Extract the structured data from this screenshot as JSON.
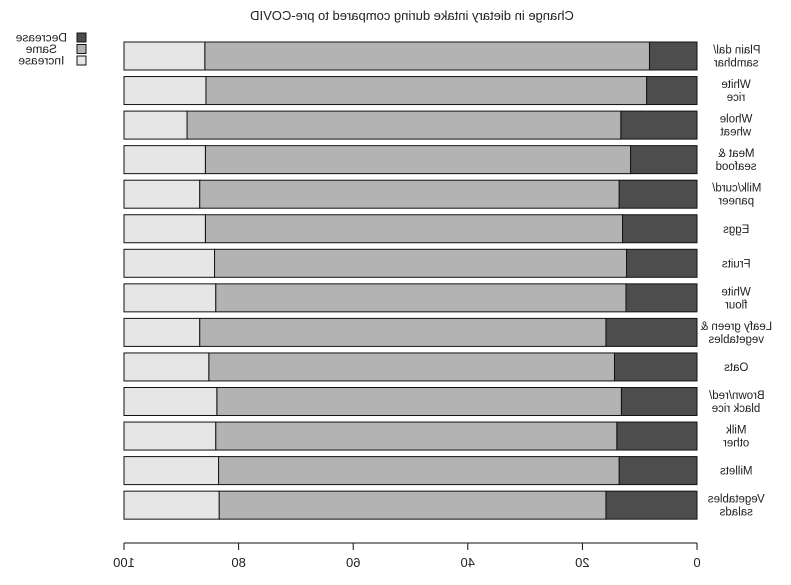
{
  "chart_data": {
    "type": "bar",
    "orientation": "horizontal",
    "stacked": true,
    "mirrored": true,
    "title": "Change in dietary intake during compared to pre-COVID",
    "categories": [
      [
        "Plain dal/",
        "sambhar"
      ],
      [
        "White",
        "rice"
      ],
      [
        "Whole",
        "wheat"
      ],
      [
        "Meat &",
        "seafood"
      ],
      [
        "Milk/curd/",
        "paneer"
      ],
      [
        "Eggs"
      ],
      [
        "Fruits"
      ],
      [
        "White",
        "flour"
      ],
      [
        "Leafy green &",
        "vegetables"
      ],
      [
        "Oats"
      ],
      [
        "Brown/red/",
        "black rice"
      ],
      [
        "Milk",
        "other"
      ],
      [
        "Millets"
      ],
      [
        "Vegetables",
        "salads"
      ]
    ],
    "series": [
      {
        "name": "Decrease",
        "color": "#4d4d4d",
        "values": [
          8.3,
          8.8,
          13.3,
          11.6,
          13.6,
          13.0,
          12.3,
          12.4,
          15.9,
          14.4,
          13.2,
          14.0,
          13.6,
          15.9
        ]
      },
      {
        "name": "Same",
        "color": "#b3b3b3",
        "values": [
          77.6,
          76.9,
          75.7,
          74.2,
          73.2,
          72.8,
          71.9,
          71.6,
          70.9,
          70.8,
          70.6,
          70.0,
          69.9,
          67.5
        ]
      },
      {
        "name": "Increase",
        "color": "#e6e6e6",
        "values": [
          14.1,
          14.3,
          11.0,
          14.2,
          13.2,
          14.2,
          15.8,
          16.0,
          13.2,
          14.8,
          16.2,
          16.0,
          16.5,
          16.6
        ]
      }
    ],
    "xlim": [
      100,
      0
    ],
    "xticks": [
      "100",
      "80",
      "60",
      "40",
      "20",
      "0"
    ],
    "legend_position": "top-left",
    "grid": false
  }
}
